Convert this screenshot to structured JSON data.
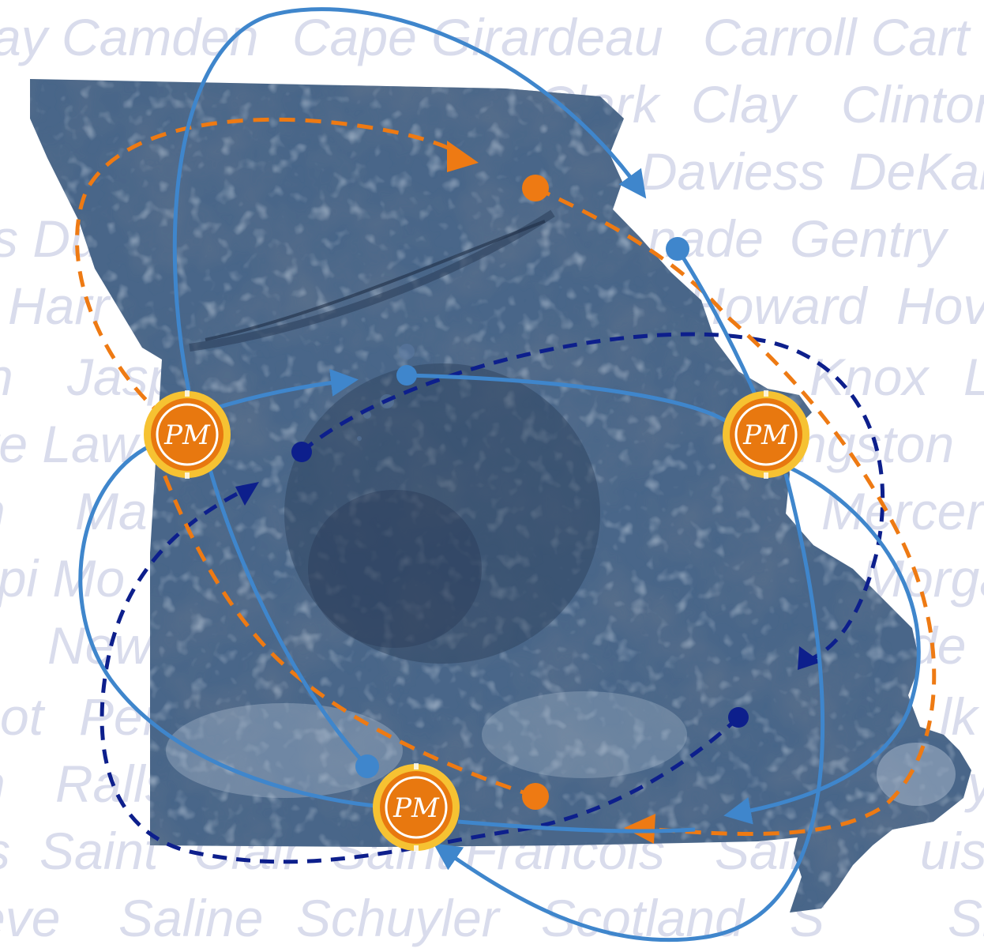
{
  "background_words": {
    "rows": [
      [
        "ay Camden",
        "Cape Girardeau",
        "Carroll Cart"
      ],
      [
        "Clark",
        "Clay",
        "Clinton"
      ],
      [
        "Daviess",
        "DeKal"
      ],
      [
        "s Du",
        "nade",
        "Gentry"
      ],
      [
        "Harr",
        "Howard",
        "Hov"
      ],
      [
        "n",
        "Jasp",
        "Knox",
        "L"
      ],
      [
        "te Law",
        "ngston"
      ],
      [
        "n",
        "Ma",
        "Mercer"
      ],
      [
        "opi Mo",
        "Morga"
      ],
      [
        "New",
        "de"
      ],
      [
        "ot",
        "Per",
        "lk"
      ],
      [
        "n",
        "Ralls",
        "y"
      ],
      [
        "s",
        "Saint",
        "Clair",
        "Saint Francois",
        "Saint",
        "uis"
      ],
      [
        "eve",
        "Saline",
        "Schuyler",
        "Scotland",
        "S",
        "Sh"
      ]
    ]
  },
  "colors": {
    "map_fill": "#4a6689",
    "map_dark": "#2a3d58",
    "map_light": "#8aa2bf",
    "route_light_blue": "#3f86cc",
    "route_orange": "#ee7a13",
    "route_navy": "#0d1f8c",
    "badge_gold": "#f6c232",
    "badge_orange": "#e8780f",
    "label_gray": "#d9dcec"
  },
  "hubs": [
    {
      "id": "west",
      "icon": "pm-logo-badge-icon",
      "monogram": "PM"
    },
    {
      "id": "east",
      "icon": "pm-logo-badge-icon",
      "monogram": "PM"
    },
    {
      "id": "south",
      "icon": "pm-logo-badge-icon",
      "monogram": "PM"
    }
  ]
}
